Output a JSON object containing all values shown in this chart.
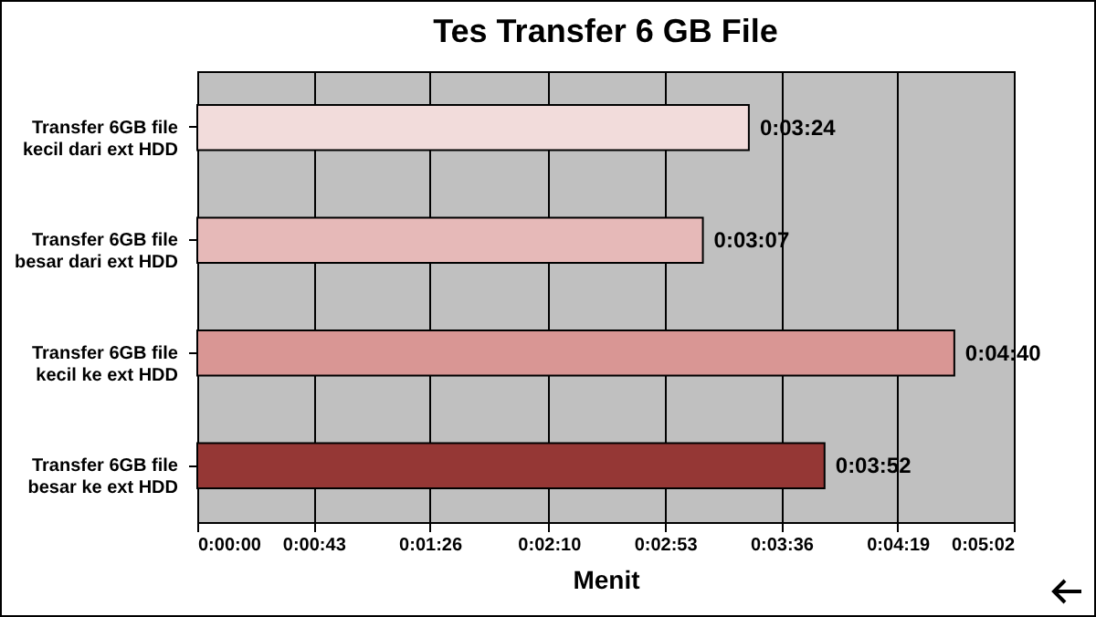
{
  "chart_data": {
    "type": "bar",
    "orientation": "horizontal",
    "title": "Tes Transfer 6 GB File",
    "xlabel": "Menit",
    "categories": [
      "Transfer 6GB file kecil dari ext HDD",
      "Transfer 6GB file besar dari ext HDD",
      "Transfer 6GB file kecil ke ext HDD",
      "Transfer 6GB file besar ke ext HDD"
    ],
    "values": [
      204,
      187,
      280,
      232
    ],
    "value_labels": [
      "0:03:24",
      "0:03:07",
      "0:04:40",
      "0:03:52"
    ],
    "colors": [
      "#f2dcdb",
      "#e6b9b8",
      "#d99694",
      "#953735"
    ],
    "xlim": [
      0,
      302
    ],
    "xticks": [
      {
        "value": 0,
        "label": "0:00:00"
      },
      {
        "value": 43,
        "label": "0:00:43"
      },
      {
        "value": 86,
        "label": "0:01:26"
      },
      {
        "value": 130,
        "label": "0:02:10"
      },
      {
        "value": 173,
        "label": "0:02:53"
      },
      {
        "value": 216,
        "label": "0:03:36"
      },
      {
        "value": 259,
        "label": "0:04:19"
      },
      {
        "value": 302,
        "label": "0:05:02"
      }
    ],
    "grid": "x"
  }
}
